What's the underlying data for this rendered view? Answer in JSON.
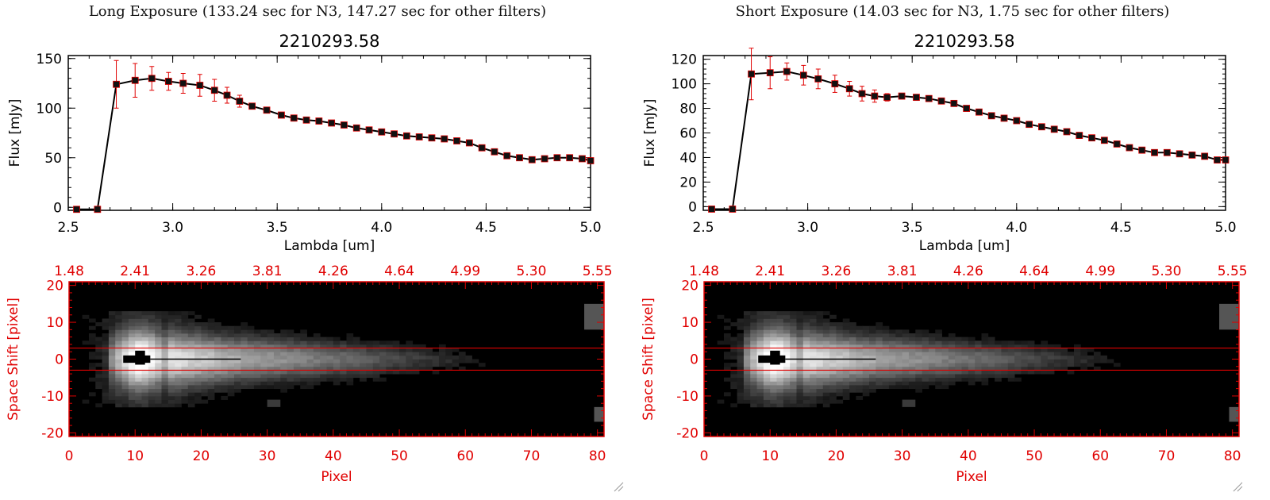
{
  "panels": [
    {
      "title": "Long Exposure (133.24 sec for N3, 147.27 sec for other filters)",
      "spectrum_id": "2210293.58"
    },
    {
      "title": "Short Exposure (14.03 sec for N3, 1.75 sec for other filters)",
      "spectrum_id": "2210293.58"
    }
  ],
  "colors": {
    "axis": "#000000",
    "error_bar": "#e00000",
    "image_axis": "#e00000",
    "aperture_line": "#e00000",
    "line": "#000000"
  },
  "chart_data": [
    {
      "type": "line",
      "title": "2210293.58",
      "xlabel": "Lambda [um]",
      "ylabel": "Flux [mJy]",
      "xlim": [
        2.5,
        5.0
      ],
      "ylim": [
        -3,
        153
      ],
      "xticks": [
        "2.5",
        "3.0",
        "3.5",
        "4.0",
        "4.5",
        "5.0"
      ],
      "yticks": [
        "0",
        "50",
        "100",
        "150"
      ],
      "ytick_values": [
        0,
        50,
        100,
        150
      ],
      "x": [
        2.54,
        2.64,
        2.73,
        2.82,
        2.9,
        2.98,
        3.05,
        3.13,
        3.2,
        3.26,
        3.32,
        3.38,
        3.45,
        3.52,
        3.58,
        3.64,
        3.7,
        3.76,
        3.82,
        3.88,
        3.94,
        4.0,
        4.06,
        4.12,
        4.18,
        4.24,
        4.3,
        4.36,
        4.42,
        4.48,
        4.54,
        4.6,
        4.66,
        4.72,
        4.78,
        4.84,
        4.9,
        4.96,
        5.0
      ],
      "y": [
        -2,
        -2,
        124,
        128,
        130,
        127,
        125,
        123,
        118,
        113,
        107,
        102,
        98,
        93,
        90,
        88,
        87,
        85,
        83,
        80,
        78,
        76,
        74,
        72,
        71,
        70,
        69,
        67,
        65,
        60,
        56,
        52,
        50,
        48,
        49,
        50,
        50,
        49,
        47
      ],
      "err": [
        0,
        0,
        24,
        17,
        12,
        9,
        10,
        11,
        11,
        8,
        6,
        3,
        2,
        0,
        0,
        0,
        0,
        0,
        0,
        0,
        0,
        0,
        0,
        0,
        0,
        0,
        0,
        0,
        0,
        0,
        0,
        0,
        0,
        0,
        0,
        0,
        0,
        0,
        0
      ]
    },
    {
      "type": "line",
      "title": "2210293.58",
      "xlabel": "Lambda [um]",
      "ylabel": "Flux [mJy]",
      "xlim": [
        2.5,
        5.0
      ],
      "ylim": [
        -3,
        123
      ],
      "xticks": [
        "2.5",
        "3.0",
        "3.5",
        "4.0",
        "4.5",
        "5.0"
      ],
      "yticks": [
        "0",
        "20",
        "40",
        "60",
        "80",
        "100",
        "120"
      ],
      "ytick_values": [
        0,
        20,
        40,
        60,
        80,
        100,
        120
      ],
      "x": [
        2.54,
        2.64,
        2.73,
        2.82,
        2.9,
        2.98,
        3.05,
        3.13,
        3.2,
        3.26,
        3.32,
        3.38,
        3.45,
        3.52,
        3.58,
        3.64,
        3.7,
        3.76,
        3.82,
        3.88,
        3.94,
        4.0,
        4.06,
        4.12,
        4.18,
        4.24,
        4.3,
        4.36,
        4.42,
        4.48,
        4.54,
        4.6,
        4.66,
        4.72,
        4.78,
        4.84,
        4.9,
        4.96,
        5.0
      ],
      "y": [
        -2,
        -2,
        108,
        109,
        110,
        107,
        104,
        100,
        96,
        92,
        90,
        89,
        90,
        89,
        88,
        86,
        84,
        80,
        77,
        74,
        72,
        70,
        67,
        65,
        63,
        61,
        58,
        56,
        54,
        51,
        48,
        46,
        44,
        44,
        43,
        42,
        41,
        38,
        38
      ],
      "err": [
        0,
        0,
        21,
        13,
        7,
        8,
        8,
        7,
        6,
        6,
        5,
        3,
        2,
        0,
        0,
        0,
        0,
        0,
        0,
        0,
        0,
        0,
        0,
        0,
        0,
        0,
        0,
        0,
        0,
        0,
        0,
        0,
        0,
        0,
        0,
        0,
        0,
        0,
        0
      ]
    },
    {
      "type": "heatmap",
      "xlabel": "Pixel",
      "ylabel": "Space Shift [pixel]",
      "xlim": [
        0,
        81
      ],
      "ylim": [
        -21,
        21
      ],
      "xticks": [
        "0",
        "10",
        "20",
        "30",
        "40",
        "50",
        "60",
        "70",
        "80"
      ],
      "yticks": [
        "-20",
        "-10",
        "0",
        "10",
        "20"
      ],
      "top_xticks": [
        "1.48",
        "2.41",
        "3.26",
        "3.81",
        "4.26",
        "4.64",
        "4.99",
        "5.30",
        "5.55"
      ],
      "aperture": [
        -3,
        3
      ]
    },
    {
      "type": "heatmap",
      "xlabel": "Pixel",
      "ylabel": "Space Shift [pixel]",
      "xlim": [
        0,
        81
      ],
      "ylim": [
        -21,
        21
      ],
      "xticks": [
        "0",
        "10",
        "20",
        "30",
        "40",
        "50",
        "60",
        "70",
        "80"
      ],
      "yticks": [
        "-20",
        "-10",
        "0",
        "10",
        "20"
      ],
      "top_xticks": [
        "1.48",
        "2.41",
        "3.26",
        "3.81",
        "4.26",
        "4.64",
        "4.99",
        "5.30",
        "5.55"
      ],
      "aperture": [
        -3,
        3
      ]
    }
  ]
}
